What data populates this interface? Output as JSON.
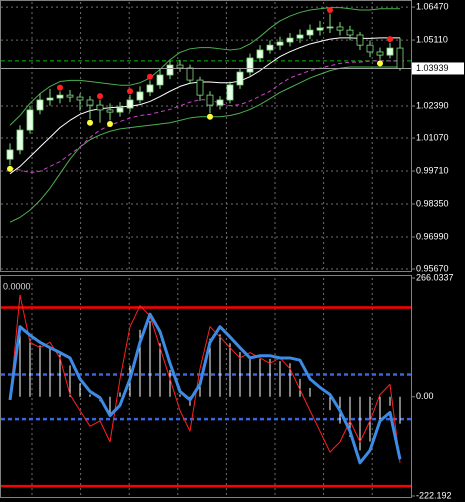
{
  "chart_data": [
    {
      "type": "candlestick",
      "open": [
        1.002,
        1.0058,
        1.014,
        1.0223,
        1.0264,
        1.0272,
        1.0284,
        1.0276,
        1.0264,
        1.0243,
        1.0223,
        1.0214,
        1.0231,
        1.0264,
        1.0297,
        1.0326,
        1.0367,
        1.0408,
        1.0396,
        1.0346,
        1.0284,
        1.0243,
        1.0264,
        1.0326,
        1.0379,
        1.0437,
        1.047,
        1.049,
        1.0503,
        1.0519,
        1.0532,
        1.0552,
        1.0561,
        1.0565,
        1.0552,
        1.0532,
        1.049,
        1.0462,
        1.0449,
        1.0478
      ],
      "high": [
        1.0085,
        1.016,
        1.024,
        1.029,
        1.031,
        1.03,
        1.0305,
        1.029,
        1.028,
        1.0265,
        1.025,
        1.0255,
        1.0285,
        1.032,
        1.0345,
        1.039,
        1.0425,
        1.043,
        1.041,
        1.036,
        1.03,
        1.028,
        1.034,
        1.0395,
        1.0455,
        1.049,
        1.051,
        1.0525,
        1.054,
        1.0555,
        1.0575,
        1.059,
        1.062,
        1.0585,
        1.057,
        1.0545,
        1.051,
        1.048,
        1.05,
        1.052
      ],
      "low": [
        0.9995,
        1.004,
        1.0125,
        1.0205,
        1.024,
        1.025,
        1.0255,
        1.022,
        1.0185,
        1.017,
        1.018,
        1.0195,
        1.0215,
        1.025,
        1.028,
        1.031,
        1.035,
        1.038,
        1.033,
        1.026,
        1.021,
        1.0225,
        1.025,
        1.031,
        1.0365,
        1.042,
        1.0455,
        1.047,
        1.0485,
        1.05,
        1.0515,
        1.053,
        1.054,
        1.053,
        1.051,
        1.047,
        1.044,
        1.043,
        1.0435,
        1.0385
      ],
      "close": [
        1.0058,
        1.014,
        1.0223,
        1.0264,
        1.0272,
        1.0284,
        1.0276,
        1.0264,
        1.0243,
        1.0223,
        1.0214,
        1.0231,
        1.0264,
        1.0297,
        1.0326,
        1.0367,
        1.0408,
        1.0396,
        1.0346,
        1.0284,
        1.0243,
        1.0264,
        1.0326,
        1.0379,
        1.0437,
        1.047,
        1.049,
        1.0503,
        1.0519,
        1.0532,
        1.0552,
        1.0561,
        1.0565,
        1.0552,
        1.0532,
        1.049,
        1.0462,
        1.0449,
        1.0478,
        1.0394
      ],
      "up_color": "#e8ffe8",
      "down_color": "#000000",
      "candle_stroke": "#7fdc7f",
      "lines": [
        {
          "color": "#4caf50",
          "style": "solid",
          "values": [
            1.016,
            1.02,
            1.025,
            1.029,
            1.032,
            1.034,
            1.0345,
            1.0345,
            1.034,
            1.0335,
            1.033,
            1.0325,
            1.0325,
            1.0335,
            1.0355,
            1.039,
            1.043,
            1.046,
            1.0475,
            1.048,
            1.048,
            1.0475,
            1.047,
            1.0475,
            1.0495,
            1.0525,
            1.056,
            1.059,
            1.061,
            1.0625,
            1.0635,
            1.064,
            1.0645,
            1.0645,
            1.064,
            1.0635,
            1.0635,
            1.064,
            1.064,
            1.064
          ]
        },
        {
          "color": "#ffffff",
          "style": "solid",
          "values": [
            0.996,
            0.999,
            1.003,
            1.007,
            1.011,
            1.015,
            1.018,
            1.0205,
            1.022,
            1.0228,
            1.0232,
            1.0235,
            1.0238,
            1.0245,
            1.0258,
            1.0278,
            1.03,
            1.032,
            1.0333,
            1.0338,
            1.0338,
            1.0335,
            1.0335,
            1.0342,
            1.036,
            1.0385,
            1.0415,
            1.0443,
            1.0463,
            1.048,
            1.0495,
            1.0505,
            1.0515,
            1.052,
            1.052,
            1.0518,
            1.0518,
            1.052,
            1.052,
            1.052
          ]
        },
        {
          "color": "#4caf50",
          "style": "solid",
          "values": [
            0.976,
            0.978,
            0.981,
            0.985,
            0.99,
            0.996,
            1.002,
            1.007,
            1.01,
            1.012,
            1.0135,
            1.0145,
            1.015,
            1.0155,
            1.016,
            1.0165,
            1.017,
            1.018,
            1.019,
            1.0195,
            1.0195,
            1.0195,
            1.02,
            1.021,
            1.0225,
            1.0245,
            1.027,
            1.0295,
            1.0315,
            1.0335,
            1.0355,
            1.037,
            1.0385,
            1.0395,
            1.04,
            1.04,
            1.04,
            1.04,
            1.04,
            1.04
          ]
        },
        {
          "color": "#cc44cc",
          "style": "dashed",
          "values": [
            0.9985,
            0.9975,
            0.9965,
            0.997,
            0.999,
            1.001,
            1.004,
            1.007,
            1.011,
            1.014,
            1.016,
            1.0175,
            1.019,
            1.02,
            1.0205,
            1.0215,
            1.0225,
            1.024,
            1.0255,
            1.0265,
            1.0265,
            1.025,
            1.024,
            1.0245,
            1.026,
            1.028,
            1.03,
            1.033,
            1.0355,
            1.037,
            1.0385,
            1.0395,
            1.0405,
            1.0415,
            1.042,
            1.042,
            1.0425,
            1.0425,
            1.0425,
            1.0425
          ]
        }
      ],
      "fractals_up": {
        "color": "#ff2020",
        "values": [
          null,
          null,
          null,
          null,
          null,
          1.0315,
          null,
          null,
          null,
          1.028,
          null,
          null,
          1.03,
          null,
          1.036,
          null,
          null,
          null,
          null,
          null,
          null,
          null,
          null,
          null,
          null,
          null,
          null,
          null,
          null,
          null,
          null,
          null,
          1.0635,
          null,
          null,
          null,
          null,
          null,
          1.0515,
          null
        ]
      },
      "fractals_down": {
        "color": "#ffff40",
        "values": [
          0.998,
          null,
          null,
          null,
          null,
          null,
          null,
          null,
          1.017,
          null,
          1.0165,
          null,
          null,
          null,
          null,
          null,
          null,
          null,
          null,
          null,
          1.0195,
          null,
          null,
          null,
          null,
          null,
          null,
          null,
          null,
          null,
          null,
          null,
          null,
          null,
          null,
          null,
          null,
          1.0415,
          null,
          null
        ]
      },
      "levels": [
        {
          "value": 1.0425,
          "color": "#00c000",
          "style": "dashed"
        }
      ],
      "current_price": {
        "value": 1.03939,
        "label": "1.03939"
      },
      "ylim": [
        0.9563,
        1.0668
      ],
      "yticks": [
        {
          "value": 1.0647,
          "label": "1.06470"
        },
        {
          "value": 1.0511,
          "label": "1.05110"
        },
        {
          "value": 1.0239,
          "label": "1.02390"
        },
        {
          "value": 1.0107,
          "label": "1.01070"
        },
        {
          "value": 0.9971,
          "label": "0.99710"
        },
        {
          "value": 0.9835,
          "label": "0.98350"
        },
        {
          "value": 0.9699,
          "label": "0.96990"
        },
        {
          "value": 0.9567,
          "label": "0.95670"
        }
      ],
      "grid": true
    },
    {
      "type": "oscillator",
      "label": "0.0000",
      "histogram": {
        "color": "#ffffff",
        "values": [
          -5,
          150,
          130,
          115,
          110,
          95,
          70,
          30,
          5,
          -10,
          -40,
          10,
          70,
          150,
          170,
          120,
          60,
          5,
          -20,
          40,
          130,
          140,
          120,
          100,
          90,
          85,
          85,
          80,
          75,
          40,
          20,
          0,
          -30,
          -60,
          -90,
          -120,
          -100,
          -50,
          -20,
          -60
        ]
      },
      "lines": [
        {
          "color": "#ff2020",
          "width": 1,
          "values": [
            -7,
            228,
            122,
            110,
            122,
            87,
            5,
            -31,
            -66,
            -54,
            -101,
            40,
            157,
            204,
            181,
            110,
            40,
            -31,
            -77,
            63,
            157,
            134,
            110,
            87,
            99,
            87,
            75,
            87,
            63,
            16,
            -31,
            -77,
            -124,
            -101,
            -54,
            -101,
            -54,
            5,
            28,
            -148
          ]
        },
        {
          "color": "#3c8ce6",
          "width": 3,
          "values": [
            -7,
            157,
            138,
            122,
            110,
            99,
            87,
            40,
            12,
            -2,
            -42,
            -19,
            40,
            122,
            185,
            146,
            75,
            12,
            -7,
            28,
            122,
            157,
            134,
            110,
            87,
            92,
            92,
            87,
            87,
            82,
            40,
            21,
            5,
            -31,
            -77,
            -148,
            -120,
            -54,
            -35,
            -140
          ]
        }
      ],
      "levels": [
        {
          "value": 200,
          "color": "#ff0000",
          "style": "solid"
        },
        {
          "value": -200,
          "color": "#ff0000",
          "style": "solid"
        },
        {
          "value": 50,
          "color": "#3c64dc",
          "style": "dashed"
        },
        {
          "value": -50,
          "color": "#3c64dc",
          "style": "dashed"
        }
      ],
      "ylim": [
        -222.192,
        266.0337
      ],
      "yticks": [
        266.0337,
        {
          "value": 0,
          "label": "0.00"
        },
        -222.192
      ]
    }
  ]
}
